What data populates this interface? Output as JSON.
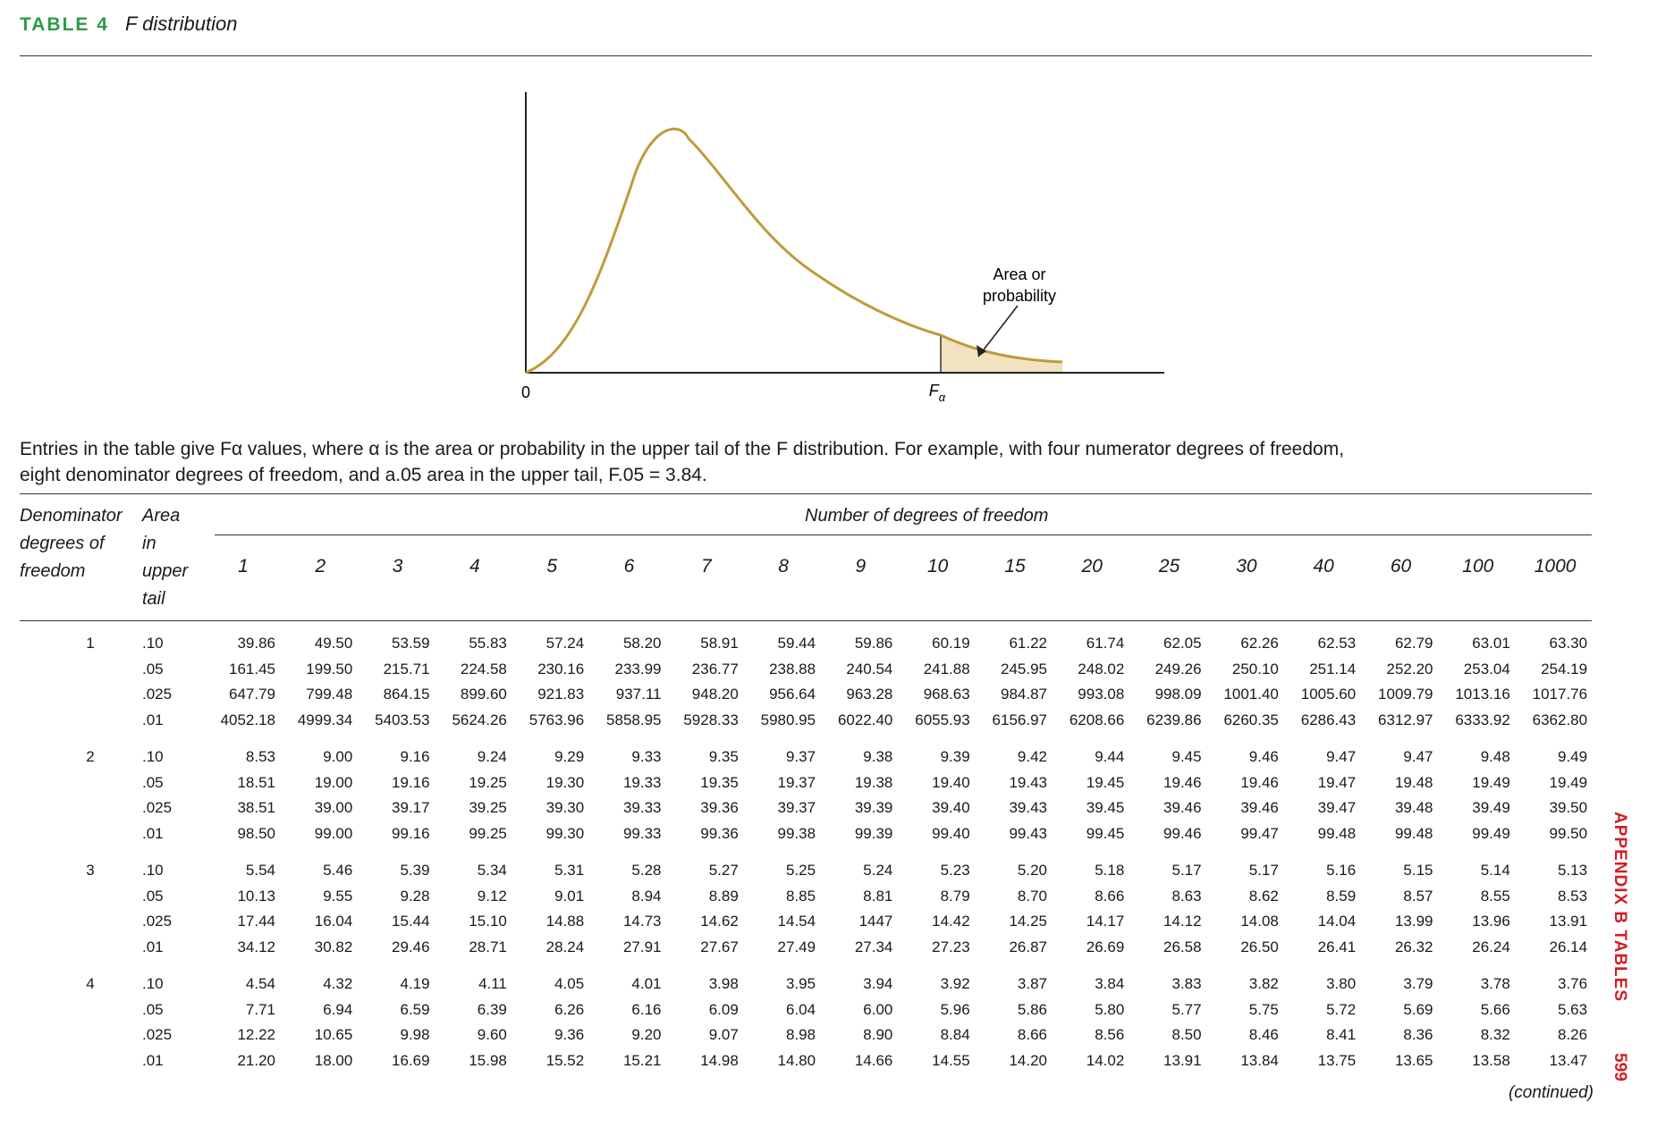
{
  "header": {
    "table_label": "TABLE 4",
    "table_title": "F distribution"
  },
  "figure": {
    "zero_label": "0",
    "f_alpha_label": "F",
    "f_alpha_sub": "α",
    "callout_line1": "Area or",
    "callout_line2": "probability"
  },
  "description": {
    "line1": "Entries in the table give Fα values, where α is the area or probability in the upper tail of the F distribution. For example, with four numerator degrees of freedom,",
    "line2": "eight denominator degrees of freedom, and a.05 area in the upper tail, F.05 = 3.84."
  },
  "table_header": {
    "denominator_line1": "Denominator",
    "denominator_line2": "degrees of",
    "denominator_line3": "freedom",
    "area_line1": "Area",
    "area_line2": "in",
    "area_line3": "upper",
    "area_line4": "tail",
    "numerator_group": "Number of degrees of freedom"
  },
  "columns": [
    "1",
    "2",
    "3",
    "4",
    "5",
    "6",
    "7",
    "8",
    "9",
    "10",
    "15",
    "20",
    "25",
    "30",
    "40",
    "60",
    "100",
    "1000"
  ],
  "blocks": [
    {
      "df": "1",
      "rows": [
        {
          "area": ".10",
          "values": [
            "39.86",
            "49.50",
            "53.59",
            "55.83",
            "57.24",
            "58.20",
            "58.91",
            "59.44",
            "59.86",
            "60.19",
            "61.22",
            "61.74",
            "62.05",
            "62.26",
            "62.53",
            "62.79",
            "63.01",
            "63.30"
          ]
        },
        {
          "area": ".05",
          "values": [
            "161.45",
            "199.50",
            "215.71",
            "224.58",
            "230.16",
            "233.99",
            "236.77",
            "238.88",
            "240.54",
            "241.88",
            "245.95",
            "248.02",
            "249.26",
            "250.10",
            "251.14",
            "252.20",
            "253.04",
            "254.19"
          ]
        },
        {
          "area": ".025",
          "values": [
            "647.79",
            "799.48",
            "864.15",
            "899.60",
            "921.83",
            "937.11",
            "948.20",
            "956.64",
            "963.28",
            "968.63",
            "984.87",
            "993.08",
            "998.09",
            "1001.40",
            "1005.60",
            "1009.79",
            "1013.16",
            "1017.76"
          ]
        },
        {
          "area": ".01",
          "values": [
            "4052.18",
            "4999.34",
            "5403.53",
            "5624.26",
            "5763.96",
            "5858.95",
            "5928.33",
            "5980.95",
            "6022.40",
            "6055.93",
            "6156.97",
            "6208.66",
            "6239.86",
            "6260.35",
            "6286.43",
            "6312.97",
            "6333.92",
            "6362.80"
          ]
        }
      ]
    },
    {
      "df": "2",
      "rows": [
        {
          "area": ".10",
          "values": [
            "8.53",
            "9.00",
            "9.16",
            "9.24",
            "9.29",
            "9.33",
            "9.35",
            "9.37",
            "9.38",
            "9.39",
            "9.42",
            "9.44",
            "9.45",
            "9.46",
            "9.47",
            "9.47",
            "9.48",
            "9.49"
          ]
        },
        {
          "area": ".05",
          "values": [
            "18.51",
            "19.00",
            "19.16",
            "19.25",
            "19.30",
            "19.33",
            "19.35",
            "19.37",
            "19.38",
            "19.40",
            "19.43",
            "19.45",
            "19.46",
            "19.46",
            "19.47",
            "19.48",
            "19.49",
            "19.49"
          ]
        },
        {
          "area": ".025",
          "values": [
            "38.51",
            "39.00",
            "39.17",
            "39.25",
            "39.30",
            "39.33",
            "39.36",
            "39.37",
            "39.39",
            "39.40",
            "39.43",
            "39.45",
            "39.46",
            "39.46",
            "39.47",
            "39.48",
            "39.49",
            "39.50"
          ]
        },
        {
          "area": ".01",
          "values": [
            "98.50",
            "99.00",
            "99.16",
            "99.25",
            "99.30",
            "99.33",
            "99.36",
            "99.38",
            "99.39",
            "99.40",
            "99.43",
            "99.45",
            "99.46",
            "99.47",
            "99.48",
            "99.48",
            "99.49",
            "99.50"
          ]
        }
      ]
    },
    {
      "df": "3",
      "rows": [
        {
          "area": ".10",
          "values": [
            "5.54",
            "5.46",
            "5.39",
            "5.34",
            "5.31",
            "5.28",
            "5.27",
            "5.25",
            "5.24",
            "5.23",
            "5.20",
            "5.18",
            "5.17",
            "5.17",
            "5.16",
            "5.15",
            "5.14",
            "5.13"
          ]
        },
        {
          "area": ".05",
          "values": [
            "10.13",
            "9.55",
            "9.28",
            "9.12",
            "9.01",
            "8.94",
            "8.89",
            "8.85",
            "8.81",
            "8.79",
            "8.70",
            "8.66",
            "8.63",
            "8.62",
            "8.59",
            "8.57",
            "8.55",
            "8.53"
          ]
        },
        {
          "area": ".025",
          "values": [
            "17.44",
            "16.04",
            "15.44",
            "15.10",
            "14.88",
            "14.73",
            "14.62",
            "14.54",
            "1447",
            "14.42",
            "14.25",
            "14.17",
            "14.12",
            "14.08",
            "14.04",
            "13.99",
            "13.96",
            "13.91"
          ]
        },
        {
          "area": ".01",
          "values": [
            "34.12",
            "30.82",
            "29.46",
            "28.71",
            "28.24",
            "27.91",
            "27.67",
            "27.49",
            "27.34",
            "27.23",
            "26.87",
            "26.69",
            "26.58",
            "26.50",
            "26.41",
            "26.32",
            "26.24",
            "26.14"
          ]
        }
      ]
    },
    {
      "df": "4",
      "rows": [
        {
          "area": ".10",
          "values": [
            "4.54",
            "4.32",
            "4.19",
            "4.11",
            "4.05",
            "4.01",
            "3.98",
            "3.95",
            "3.94",
            "3.92",
            "3.87",
            "3.84",
            "3.83",
            "3.82",
            "3.80",
            "3.79",
            "3.78",
            "3.76"
          ]
        },
        {
          "area": ".05",
          "values": [
            "7.71",
            "6.94",
            "6.59",
            "6.39",
            "6.26",
            "6.16",
            "6.09",
            "6.04",
            "6.00",
            "5.96",
            "5.86",
            "5.80",
            "5.77",
            "5.75",
            "5.72",
            "5.69",
            "5.66",
            "5.63"
          ]
        },
        {
          "area": ".025",
          "values": [
            "12.22",
            "10.65",
            "9.98",
            "9.60",
            "9.36",
            "9.20",
            "9.07",
            "8.98",
            "8.90",
            "8.84",
            "8.66",
            "8.56",
            "8.50",
            "8.46",
            "8.41",
            "8.36",
            "8.32",
            "8.26"
          ]
        },
        {
          "area": ".01",
          "values": [
            "21.20",
            "18.00",
            "16.69",
            "15.98",
            "15.52",
            "15.21",
            "14.98",
            "14.80",
            "14.66",
            "14.55",
            "14.20",
            "14.02",
            "13.91",
            "13.84",
            "13.75",
            "13.65",
            "13.58",
            "13.47"
          ]
        }
      ]
    }
  ],
  "footer": {
    "continued": "(continued)",
    "side_label": "APPENDIX B TABLES",
    "page_number": "599"
  },
  "colors": {
    "table_label": "#2e9a49",
    "curve": "#c09a3c",
    "tail_fill": "#f2e2bf",
    "side_label": "#d01f25"
  }
}
